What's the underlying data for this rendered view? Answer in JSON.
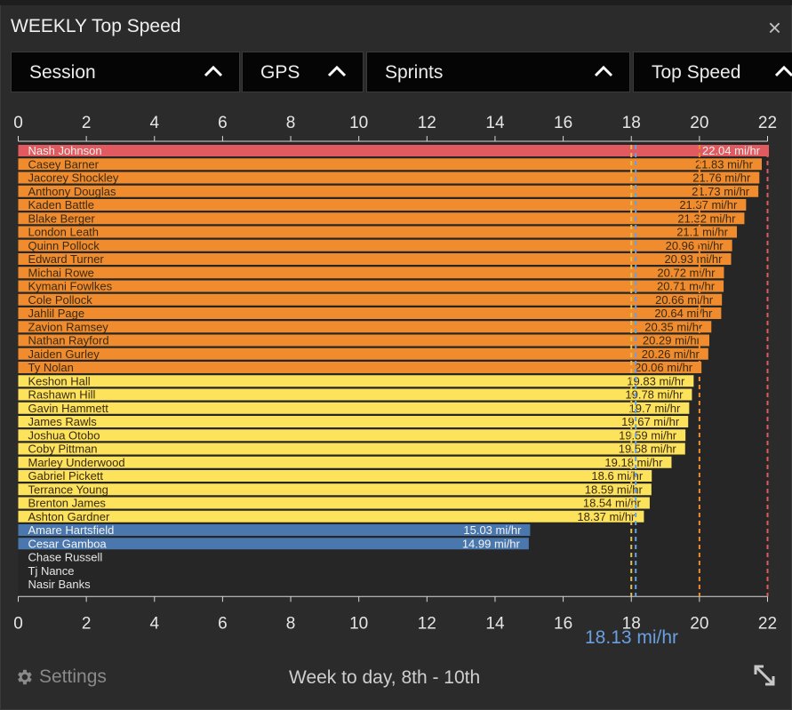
{
  "window": {
    "title": "WEEKLY Top Speed",
    "close_label": "×"
  },
  "filters": [
    {
      "label": "Session"
    },
    {
      "label": "GPS"
    },
    {
      "label": "Sprints"
    },
    {
      "label": "Top Speed"
    }
  ],
  "footer": {
    "settings_label": "Settings",
    "date_range": "Week to day, 8th - 10th"
  },
  "colors": {
    "red": "#e05a5f",
    "orange": "#f08c2e",
    "yellow": "#fde35b",
    "blue": "#4a78ae",
    "ref_line": "#6a9fe0"
  },
  "chart_data": {
    "type": "bar",
    "orientation": "horizontal",
    "unit": "mi/hr",
    "xlim": [
      0,
      22
    ],
    "ticks": [
      0,
      2,
      4,
      6,
      8,
      10,
      12,
      14,
      16,
      18,
      20,
      22
    ],
    "reference_lines": [
      {
        "value": 18,
        "color": "#e0c050"
      },
      {
        "value": 18.13,
        "color": "#6a9fe0",
        "label": "18.13 mi/hr"
      },
      {
        "value": 20,
        "color": "#f08c2e"
      },
      {
        "value": 22,
        "color": "#e05a5f"
      }
    ],
    "series": [
      {
        "name": "Nash Johnson",
        "value": 22.04,
        "label": "22.04 mi/hr",
        "band": "red"
      },
      {
        "name": "Casey Barner",
        "value": 21.83,
        "label": "21.83 mi/hr",
        "band": "orange"
      },
      {
        "name": "Jacorey Shockley",
        "value": 21.76,
        "label": "21.76 mi/hr",
        "band": "orange"
      },
      {
        "name": "Anthony Douglas",
        "value": 21.73,
        "label": "21.73 mi/hr",
        "band": "orange"
      },
      {
        "name": "Kaden Battle",
        "value": 21.37,
        "label": "21.37 mi/hr",
        "band": "orange"
      },
      {
        "name": "Blake Berger",
        "value": 21.32,
        "label": "21.32 mi/hr",
        "band": "orange"
      },
      {
        "name": "London Leath",
        "value": 21.1,
        "label": "21.1 mi/hr",
        "band": "orange"
      },
      {
        "name": "Quinn Pollock",
        "value": 20.96,
        "label": "20.96 mi/hr",
        "band": "orange"
      },
      {
        "name": "Edward Turner",
        "value": 20.93,
        "label": "20.93 mi/hr",
        "band": "orange"
      },
      {
        "name": "Michai Rowe",
        "value": 20.72,
        "label": "20.72 mi/hr",
        "band": "orange"
      },
      {
        "name": "Kymani Fowlkes",
        "value": 20.71,
        "label": "20.71 mi/hr",
        "band": "orange"
      },
      {
        "name": "Cole Pollock",
        "value": 20.66,
        "label": "20.66 mi/hr",
        "band": "orange"
      },
      {
        "name": "Jahlil Page",
        "value": 20.64,
        "label": "20.64 mi/hr",
        "band": "orange"
      },
      {
        "name": "Zavion Ramsey",
        "value": 20.35,
        "label": "20.35 mi/hr",
        "band": "orange"
      },
      {
        "name": "Nathan Rayford",
        "value": 20.29,
        "label": "20.29 mi/hr",
        "band": "orange"
      },
      {
        "name": "Jaiden Gurley",
        "value": 20.26,
        "label": "20.26 mi/hr",
        "band": "orange"
      },
      {
        "name": "Ty Nolan",
        "value": 20.06,
        "label": "20.06 mi/hr",
        "band": "orange"
      },
      {
        "name": "Keshon Hall",
        "value": 19.83,
        "label": "19.83 mi/hr",
        "band": "yellow"
      },
      {
        "name": "Rashawn Hill",
        "value": 19.78,
        "label": "19.78 mi/hr",
        "band": "yellow"
      },
      {
        "name": "Gavin Hammett",
        "value": 19.7,
        "label": "19.7 mi/hr",
        "band": "yellow"
      },
      {
        "name": "James Rawls",
        "value": 19.67,
        "label": "19.67 mi/hr",
        "band": "yellow"
      },
      {
        "name": "Joshua Otobo",
        "value": 19.59,
        "label": "19.59 mi/hr",
        "band": "yellow"
      },
      {
        "name": "Coby Pittman",
        "value": 19.58,
        "label": "19.58 mi/hr",
        "band": "yellow"
      },
      {
        "name": "Marley Underwood",
        "value": 19.18,
        "label": "19.18 mi/hr",
        "band": "yellow"
      },
      {
        "name": "Gabriel Pickett",
        "value": 18.6,
        "label": "18.6 mi/hr",
        "band": "yellow"
      },
      {
        "name": "Terrance Young",
        "value": 18.59,
        "label": "18.59 mi/hr",
        "band": "yellow"
      },
      {
        "name": "Brenton James",
        "value": 18.54,
        "label": "18.54 mi/hr",
        "band": "yellow"
      },
      {
        "name": "Ashton Gardner",
        "value": 18.37,
        "label": "18.37 mi/hr",
        "band": "yellow"
      },
      {
        "name": "Amare Hartsfield",
        "value": 15.03,
        "label": "15.03 mi/hr",
        "band": "blue"
      },
      {
        "name": "Cesar Gamboa",
        "value": 14.99,
        "label": "14.99 mi/hr",
        "band": "blue"
      },
      {
        "name": "Chase Russell",
        "value": 0,
        "label": "",
        "band": "none"
      },
      {
        "name": "Tj Nance",
        "value": 0,
        "label": "",
        "band": "none"
      },
      {
        "name": "Nasir Banks",
        "value": 0,
        "label": "",
        "band": "none"
      }
    ]
  }
}
